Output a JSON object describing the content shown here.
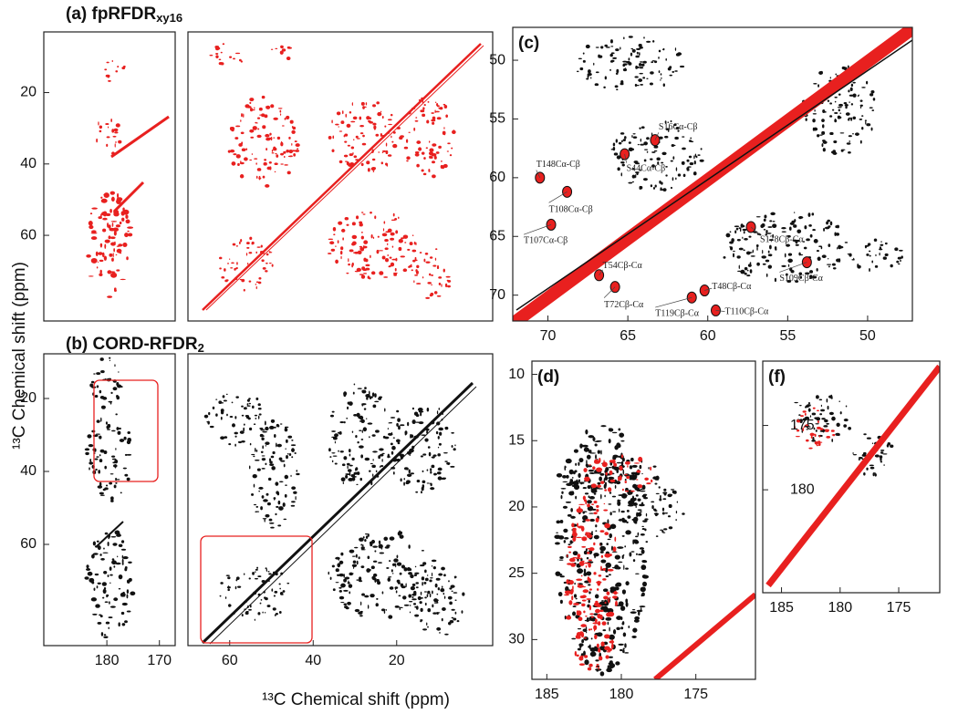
{
  "y_label": "¹³C Chemical shift (ppm)",
  "x_label": "¹³C Chemical shift (ppm)",
  "chart_data": [
    {
      "type": "scatter",
      "title": "(a) fpRFDR",
      "title_sub": "xy16",
      "ylim": [
        3,
        84
      ],
      "yticks": [
        20,
        40,
        60
      ]
    },
    {
      "type": "scatter"
    },
    {
      "type": "scatter",
      "title": "(c)",
      "xlim": [
        72.2,
        47.2
      ],
      "ylim": [
        47.2,
        72.2
      ],
      "xticks": [
        70,
        65,
        60,
        55,
        50
      ],
      "yticks": [
        50,
        55,
        60,
        65,
        70
      ],
      "annotations": [
        {
          "text": "T148Cα-Cβ",
          "x": 70.5,
          "y": 60.0
        },
        {
          "text": "S16Cα-Cβ",
          "x": 63.3,
          "y": 56.8
        },
        {
          "text": "S44Cα-Cβ",
          "x": 65.2,
          "y": 58.0
        },
        {
          "text": "T108Cα-Cβ",
          "x": 68.8,
          "y": 61.2
        },
        {
          "text": "T107Cα-Cβ",
          "x": 69.8,
          "y": 64.0
        },
        {
          "text": "T54Cβ-Cα",
          "x": 66.8,
          "y": 68.3
        },
        {
          "text": "T72Cβ-Cα",
          "x": 65.8,
          "y": 69.3
        },
        {
          "text": "S178Cβ-Cα",
          "x": 57.3,
          "y": 64.2
        },
        {
          "text": "S109Cβ-Cα",
          "x": 53.8,
          "y": 67.2
        },
        {
          "text": "T48Cβ-Cα",
          "x": 60.2,
          "y": 69.6
        },
        {
          "text": "T119Cβ-Cα",
          "x": 61.0,
          "y": 70.2
        },
        {
          "text": "T110Cβ-Cα",
          "x": 59.5,
          "y": 71.3
        }
      ]
    },
    {
      "type": "scatter",
      "title": "(b) CORD-RFDR",
      "title_sub": "2",
      "xlim": [
        192,
        167
      ],
      "ylim": [
        7.75,
        87.75
      ],
      "xticks": [
        180,
        170
      ],
      "yticks": [
        20,
        40,
        60
      ]
    },
    {
      "type": "scatter",
      "xlim": [
        70,
        -3
      ],
      "ylim": [
        7.75,
        87.75
      ],
      "xticks": [
        60,
        40,
        20
      ]
    },
    {
      "type": "scatter",
      "title": "(d)",
      "xlim": [
        186,
        171
      ],
      "ylim": [
        9,
        33
      ],
      "xticks": [
        185,
        180,
        175
      ],
      "yticks": [
        10,
        15,
        20,
        25,
        30
      ]
    },
    {
      "type": "scatter",
      "title": "(f)",
      "xlim": [
        186.6,
        171.5
      ],
      "ylim": [
        170,
        188
      ],
      "xticks": [
        185,
        180,
        175
      ],
      "yticks": [
        175,
        180
      ]
    }
  ]
}
